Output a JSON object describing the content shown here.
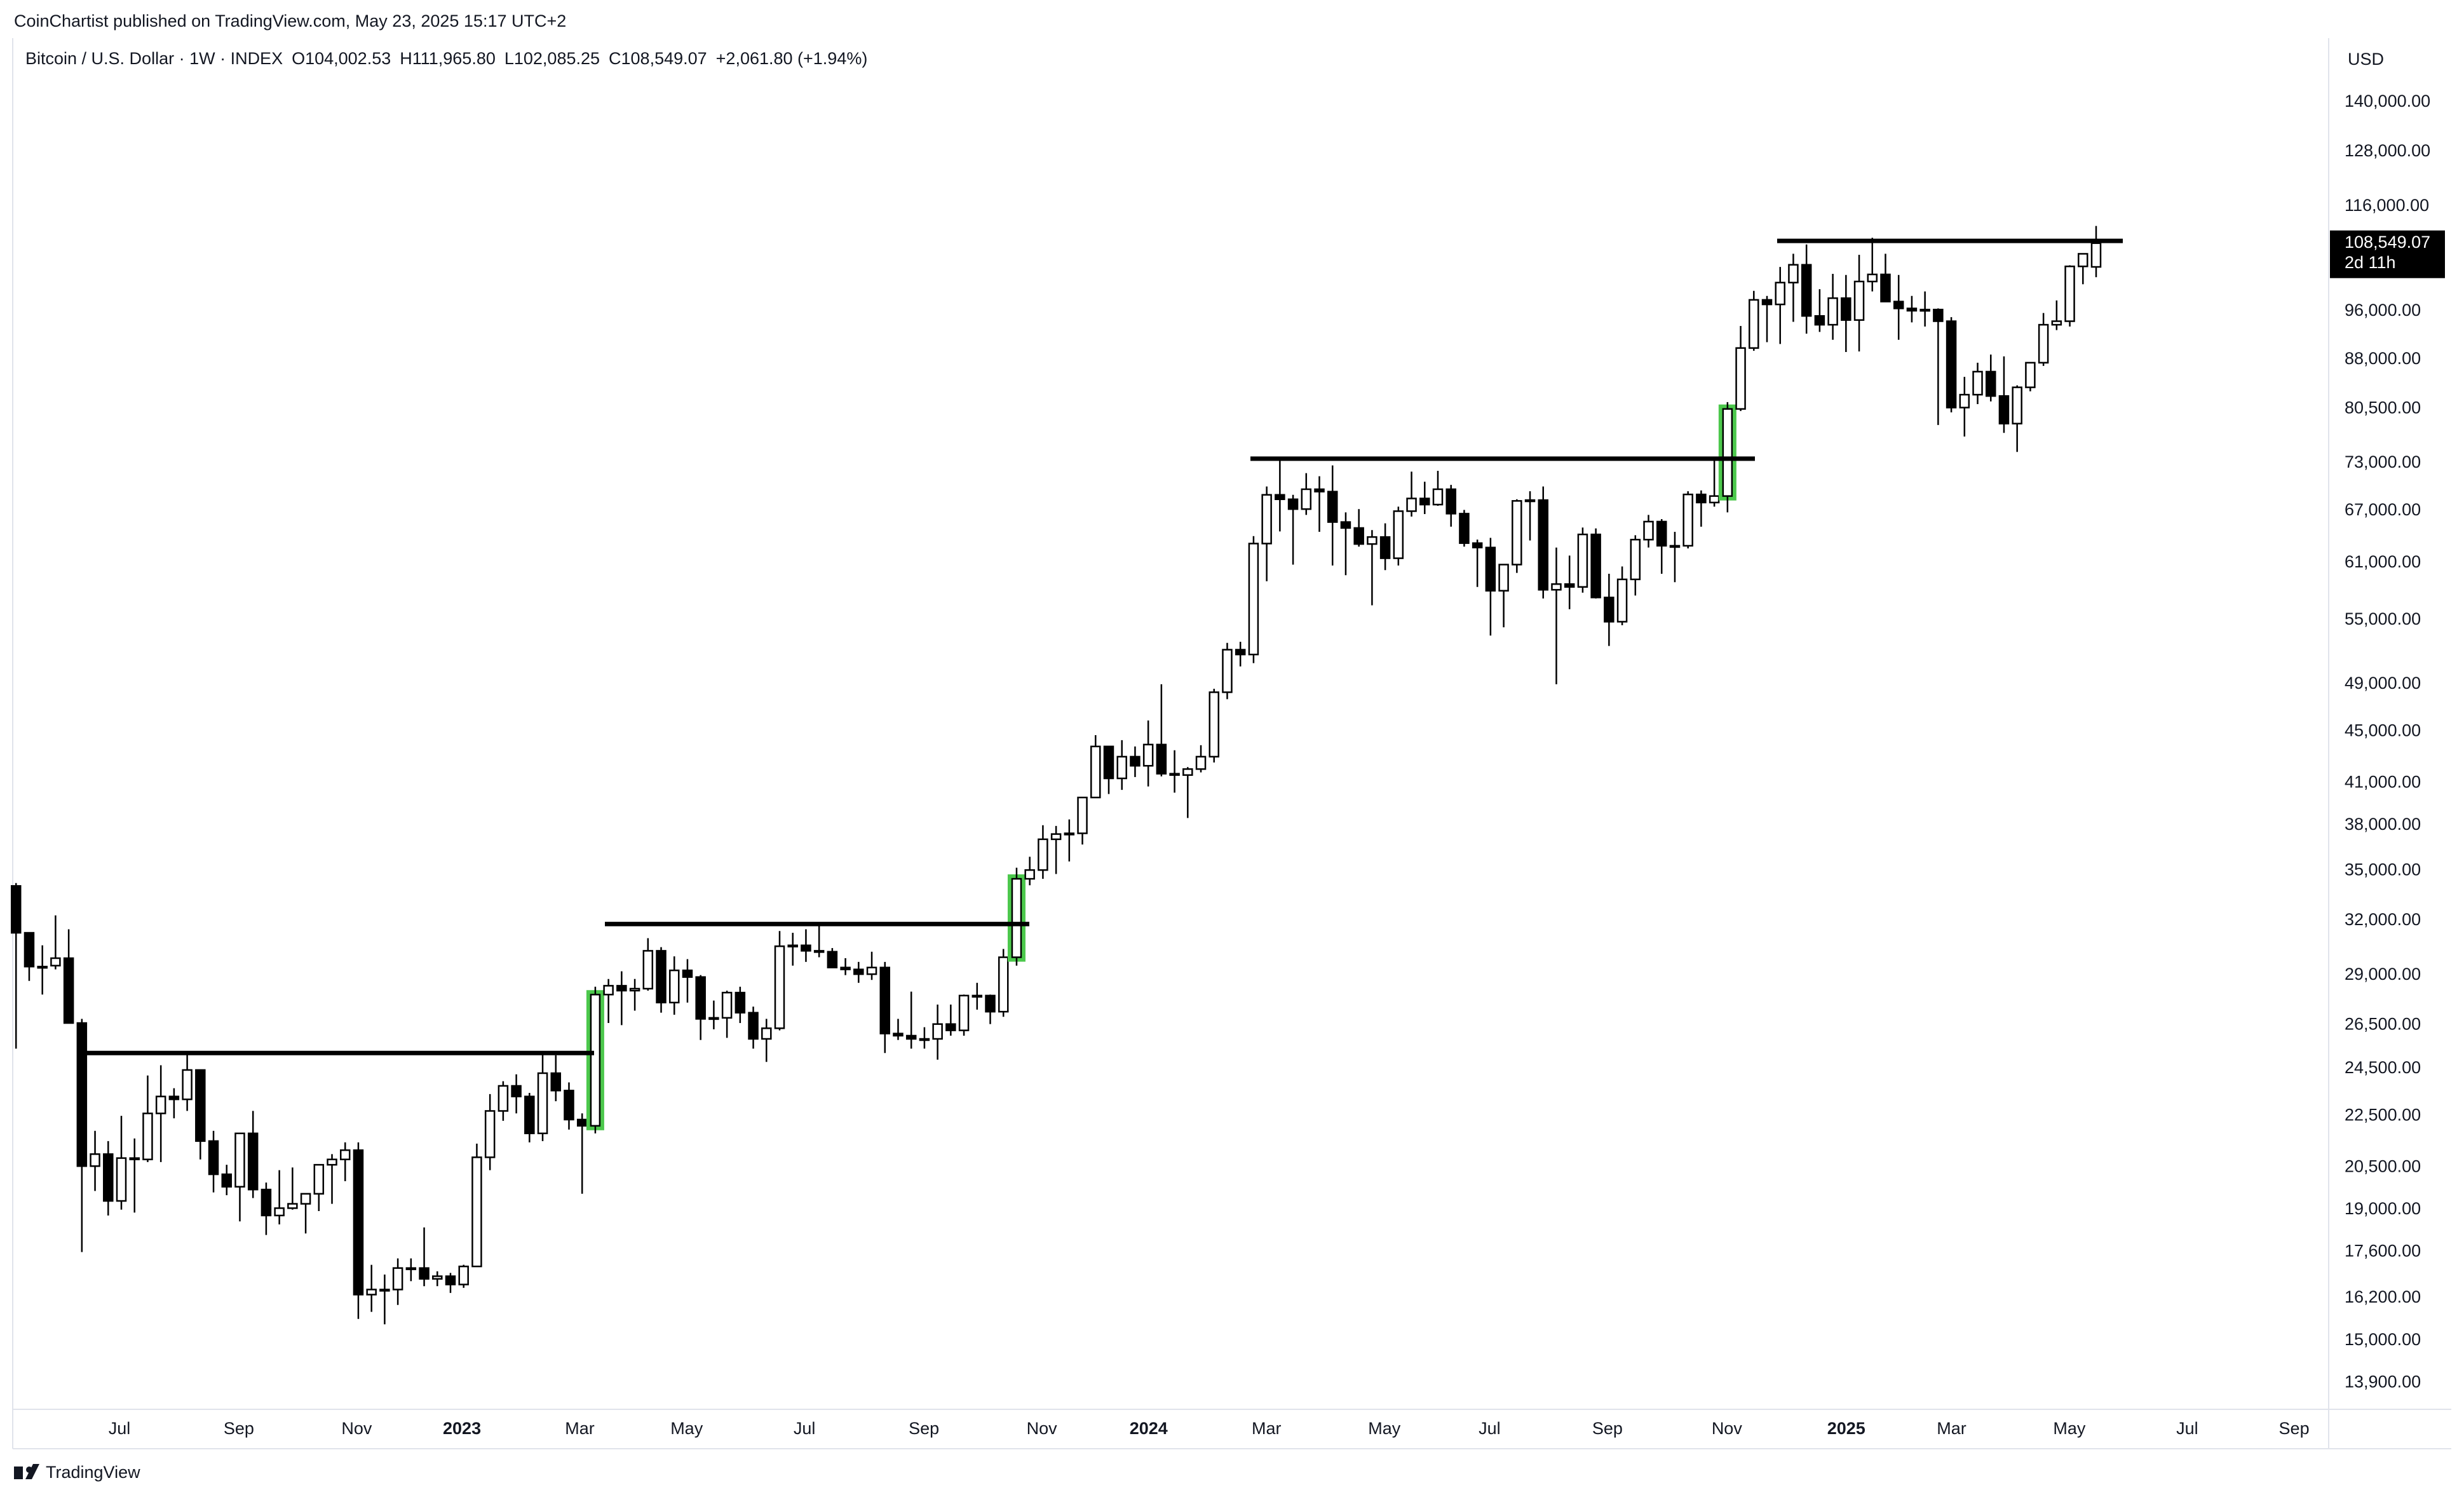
{
  "header": {
    "published": "CoinChartist published on TradingView.com, May 23, 2025 15:17 UTC+2",
    "symbol": "Bitcoin / U.S. Dollar · 1W · INDEX",
    "open": "O104,002.53",
    "high": "H111,965.80",
    "low": "L102,085.25",
    "close": "C108,549.07",
    "change": "+2,061.80 (+1.94%)"
  },
  "footer": {
    "brand": "TradingView"
  },
  "chart_data": {
    "type": "candlestick",
    "log_scale": true,
    "grid": false,
    "currency": "USD",
    "up_color": "#ffffff",
    "down_color": "#000000",
    "wick_color": "#000000",
    "highlight_color": "#4cc84c",
    "level_color": "#000000",
    "ylim": [
      13300,
      155500
    ],
    "yticks": [
      {
        "value": 140000,
        "label": "140,000.00"
      },
      {
        "value": 128000,
        "label": "128,000.00"
      },
      {
        "value": 116000,
        "label": "116,000.00"
      },
      {
        "value": 96000,
        "label": "96,000.00"
      },
      {
        "value": 88000,
        "label": "88,000.00"
      },
      {
        "value": 80500,
        "label": "80,500.00"
      },
      {
        "value": 73000,
        "label": "73,000.00"
      },
      {
        "value": 67000,
        "label": "67,000.00"
      },
      {
        "value": 61000,
        "label": "61,000.00"
      },
      {
        "value": 55000,
        "label": "55,000.00"
      },
      {
        "value": 49000,
        "label": "49,000.00"
      },
      {
        "value": 45000,
        "label": "45,000.00"
      },
      {
        "value": 41000,
        "label": "41,000.00"
      },
      {
        "value": 38000,
        "label": "38,000.00"
      },
      {
        "value": 35000,
        "label": "35,000.00"
      },
      {
        "value": 32000,
        "label": "32,000.00"
      },
      {
        "value": 29000,
        "label": "29,000.00"
      },
      {
        "value": 26500,
        "label": "26,500.00"
      },
      {
        "value": 24500,
        "label": "24,500.00"
      },
      {
        "value": 22500,
        "label": "22,500.00"
      },
      {
        "value": 20500,
        "label": "20,500.00"
      },
      {
        "value": 19000,
        "label": "19,000.00"
      },
      {
        "value": 17600,
        "label": "17,600.00"
      },
      {
        "value": 16200,
        "label": "16,200.00"
      },
      {
        "value": 15000,
        "label": "15,000.00"
      },
      {
        "value": 13900,
        "label": "13,900.00"
      }
    ],
    "xtick_labels": [
      "Jul",
      "Sep",
      "Nov",
      "2023",
      "Mar",
      "May",
      "Jul",
      "Sep",
      "Nov",
      "2024",
      "Mar",
      "May",
      "Jul",
      "Sep",
      "Nov",
      "2025",
      "Mar",
      "May",
      "Jul",
      "Sep"
    ],
    "last_price": {
      "value": 108549.07,
      "label": "108,549.07",
      "countdown": "2d 11h"
    },
    "levels": [
      25200,
      31800,
      73600,
      109000
    ],
    "candles": [
      [
        34060,
        34240,
        25400,
        31300
      ],
      [
        31300,
        31300,
        28700,
        29450
      ],
      [
        29450,
        30600,
        28000,
        29450
      ],
      [
        29500,
        32300,
        29300,
        29900
      ],
      [
        29900,
        31500,
        26600,
        26600
      ],
      [
        26600,
        26800,
        17600,
        20550
      ],
      [
        20550,
        21900,
        19650,
        21000
      ],
      [
        21000,
        21500,
        18800,
        19300
      ],
      [
        19300,
        22500,
        19000,
        20850
      ],
      [
        20850,
        21600,
        18900,
        20800
      ],
      [
        20800,
        24200,
        20700,
        22600
      ],
      [
        22600,
        24650,
        20700,
        23300
      ],
      [
        23300,
        23650,
        22400,
        23180
      ],
      [
        23180,
        25200,
        22700,
        24440
      ],
      [
        24440,
        24450,
        20800,
        21500
      ],
      [
        21500,
        21900,
        19600,
        20250
      ],
      [
        20250,
        20600,
        19500,
        19800
      ],
      [
        19800,
        21800,
        18600,
        21800
      ],
      [
        21800,
        22700,
        19400,
        19700
      ],
      [
        19700,
        19950,
        18150,
        18800
      ],
      [
        18800,
        20400,
        18500,
        19050
      ],
      [
        19050,
        20500,
        19000,
        19200
      ],
      [
        19200,
        19500,
        18200,
        19550
      ],
      [
        19550,
        19700,
        18950,
        20600
      ],
      [
        20600,
        21000,
        19200,
        20800
      ],
      [
        20800,
        21450,
        20000,
        21150
      ],
      [
        21150,
        21450,
        15600,
        16300
      ],
      [
        16300,
        17200,
        15800,
        16450
      ],
      [
        16450,
        16900,
        15450,
        16450
      ],
      [
        16450,
        17400,
        16000,
        17100
      ],
      [
        17100,
        17400,
        16700,
        17100
      ],
      [
        17100,
        18400,
        16550,
        16770
      ],
      [
        16770,
        17000,
        16550,
        16850
      ],
      [
        16850,
        16950,
        16350,
        16600
      ],
      [
        16600,
        17200,
        16500,
        17150
      ],
      [
        17150,
        21400,
        17150,
        20880
      ],
      [
        20880,
        23400,
        20400,
        22700
      ],
      [
        22700,
        23950,
        22300,
        23750
      ],
      [
        23750,
        24250,
        22600,
        23300
      ],
      [
        23300,
        23450,
        21450,
        21800
      ],
      [
        21800,
        25250,
        21500,
        24300
      ],
      [
        24300,
        25100,
        23100,
        23550
      ],
      [
        23550,
        23900,
        21950,
        22350
      ],
      [
        22350,
        22600,
        19550,
        22100
      ],
      [
        22100,
        28400,
        21800,
        28000
      ],
      [
        28000,
        28800,
        26600,
        28450
      ],
      [
        28450,
        29200,
        26500,
        28200
      ],
      [
        28200,
        28800,
        27200,
        28300
      ],
      [
        28300,
        31000,
        28200,
        30300
      ],
      [
        30300,
        30500,
        27100,
        27600
      ],
      [
        27600,
        30000,
        27000,
        29250
      ],
      [
        29250,
        29850,
        27600,
        28900
      ],
      [
        28900,
        29000,
        25800,
        26800
      ],
      [
        26800,
        27700,
        26300,
        26850
      ],
      [
        26850,
        28200,
        25900,
        28100
      ],
      [
        28100,
        28400,
        26600,
        27100
      ],
      [
        27100,
        27400,
        25400,
        25850
      ],
      [
        25850,
        26800,
        24800,
        26350
      ],
      [
        26350,
        31400,
        26250,
        30550
      ],
      [
        30550,
        31300,
        29500,
        30600
      ],
      [
        30600,
        31500,
        29700,
        30300
      ],
      [
        30300,
        31800,
        29950,
        30250
      ],
      [
        30250,
        30450,
        29500,
        29400
      ],
      [
        29400,
        29900,
        29000,
        29300
      ],
      [
        29300,
        29700,
        28600,
        29050
      ],
      [
        29050,
        30250,
        28750,
        29400
      ],
      [
        29400,
        29700,
        25200,
        26100
      ],
      [
        26100,
        26800,
        25800,
        26000
      ],
      [
        26000,
        28150,
        25400,
        25850
      ],
      [
        25850,
        26400,
        25400,
        25850
      ],
      [
        25850,
        27500,
        24900,
        26550
      ],
      [
        26550,
        27500,
        26000,
        26250
      ],
      [
        26250,
        28000,
        26000,
        27950
      ],
      [
        27950,
        28600,
        27250,
        27950
      ],
      [
        27950,
        28000,
        26550,
        27150
      ],
      [
        27150,
        30400,
        26900,
        29950
      ],
      [
        29950,
        35200,
        29500,
        34500
      ],
      [
        34500,
        35900,
        34100,
        35050
      ],
      [
        35050,
        38000,
        34500,
        37050
      ],
      [
        37050,
        37950,
        34800,
        37400
      ],
      [
        37400,
        38400,
        35600,
        37450
      ],
      [
        37450,
        40000,
        36700,
        39950
      ],
      [
        39950,
        44700,
        39950,
        43800
      ],
      [
        43800,
        43800,
        40200,
        41350
      ],
      [
        41350,
        44300,
        40500,
        43000
      ],
      [
        43000,
        43800,
        41450,
        42300
      ],
      [
        42300,
        45900,
        40750,
        43950
      ],
      [
        43950,
        49000,
        41500,
        41700
      ],
      [
        41700,
        43500,
        40300,
        41600
      ],
      [
        41600,
        42200,
        38500,
        42050
      ],
      [
        42050,
        43900,
        41800,
        43000
      ],
      [
        43000,
        48600,
        42550,
        48300
      ],
      [
        48300,
        52800,
        47700,
        52150
      ],
      [
        52150,
        52900,
        50600,
        51700
      ],
      [
        51700,
        64000,
        50900,
        63150
      ],
      [
        63150,
        70000,
        59000,
        68950
      ],
      [
        68950,
        73800,
        64550,
        68400
      ],
      [
        68400,
        68950,
        60800,
        67200
      ],
      [
        67200,
        71700,
        66500,
        69650
      ],
      [
        69650,
        71300,
        64500,
        69350
      ],
      [
        69350,
        72700,
        60700,
        65650
      ],
      [
        65650,
        66800,
        59650,
        64950
      ],
      [
        64950,
        67200,
        62800,
        63100
      ],
      [
        63100,
        64700,
        56500,
        63900
      ],
      [
        63900,
        65500,
        60200,
        61500
      ],
      [
        61500,
        67500,
        60700,
        66950
      ],
      [
        66950,
        71900,
        66300,
        68500
      ],
      [
        68500,
        70600,
        66600,
        67750
      ],
      [
        67750,
        72000,
        67600,
        69650
      ],
      [
        69650,
        70200,
        65100,
        66650
      ],
      [
        66650,
        67100,
        62800,
        63200
      ],
      [
        63200,
        63600,
        58400,
        62700
      ],
      [
        62700,
        63800,
        53500,
        58000
      ],
      [
        58000,
        60800,
        54300,
        60800
      ],
      [
        60800,
        68400,
        59900,
        68200
      ],
      [
        68200,
        69400,
        63500,
        68300
      ],
      [
        68300,
        70000,
        57200,
        58100
      ],
      [
        58100,
        62700,
        49000,
        58700
      ],
      [
        58700,
        61800,
        56100,
        58400
      ],
      [
        58400,
        65000,
        57800,
        64200
      ],
      [
        64200,
        64900,
        57200,
        57300
      ],
      [
        57300,
        59800,
        52500,
        54850
      ],
      [
        54850,
        60600,
        54500,
        59200
      ],
      [
        59200,
        64100,
        57500,
        63600
      ],
      [
        63600,
        66500,
        62700,
        65700
      ],
      [
        65700,
        66000,
        59800,
        62900
      ],
      [
        62900,
        64500,
        58900,
        62900
      ],
      [
        62900,
        69400,
        62600,
        69000
      ],
      [
        69000,
        69500,
        65100,
        68000
      ],
      [
        68000,
        73600,
        67500,
        68800
      ],
      [
        68800,
        81500,
        66800,
        80500
      ],
      [
        80500,
        93500,
        80200,
        89850
      ],
      [
        89850,
        99600,
        89400,
        98000
      ],
      [
        98000,
        98700,
        90800,
        97200
      ],
      [
        97200,
        104000,
        90500,
        101100
      ],
      [
        101100,
        106500,
        94200,
        104400
      ],
      [
        104400,
        108300,
        92200,
        95200
      ],
      [
        95200,
        99900,
        92500,
        93700
      ],
      [
        93700,
        102700,
        91200,
        98300
      ],
      [
        98300,
        102500,
        89200,
        94500
      ],
      [
        94500,
        106300,
        89300,
        101300
      ],
      [
        101300,
        109600,
        99500,
        102600
      ],
      [
        102600,
        106500,
        97800,
        97700
      ],
      [
        97700,
        102500,
        91200,
        96500
      ],
      [
        96500,
        98700,
        94100,
        96100
      ],
      [
        96100,
        99500,
        93400,
        96300
      ],
      [
        96300,
        96500,
        78200,
        94300
      ],
      [
        94300,
        95000,
        80000,
        80700
      ],
      [
        80700,
        85300,
        76600,
        82600
      ],
      [
        82600,
        87500,
        81200,
        86100
      ],
      [
        86100,
        88800,
        81600,
        82400
      ],
      [
        82400,
        88500,
        77100,
        78400
      ],
      [
        78400,
        84000,
        74500,
        83700
      ],
      [
        83700,
        86500,
        83100,
        87500
      ],
      [
        87500,
        95700,
        87000,
        93700
      ],
      [
        93700,
        97900,
        92800,
        94300
      ],
      [
        94300,
        104300,
        93400,
        104100
      ],
      [
        104100,
        105800,
        100800,
        106487
      ],
      [
        104002.53,
        111965.8,
        102085.25,
        108549.07
      ]
    ]
  }
}
